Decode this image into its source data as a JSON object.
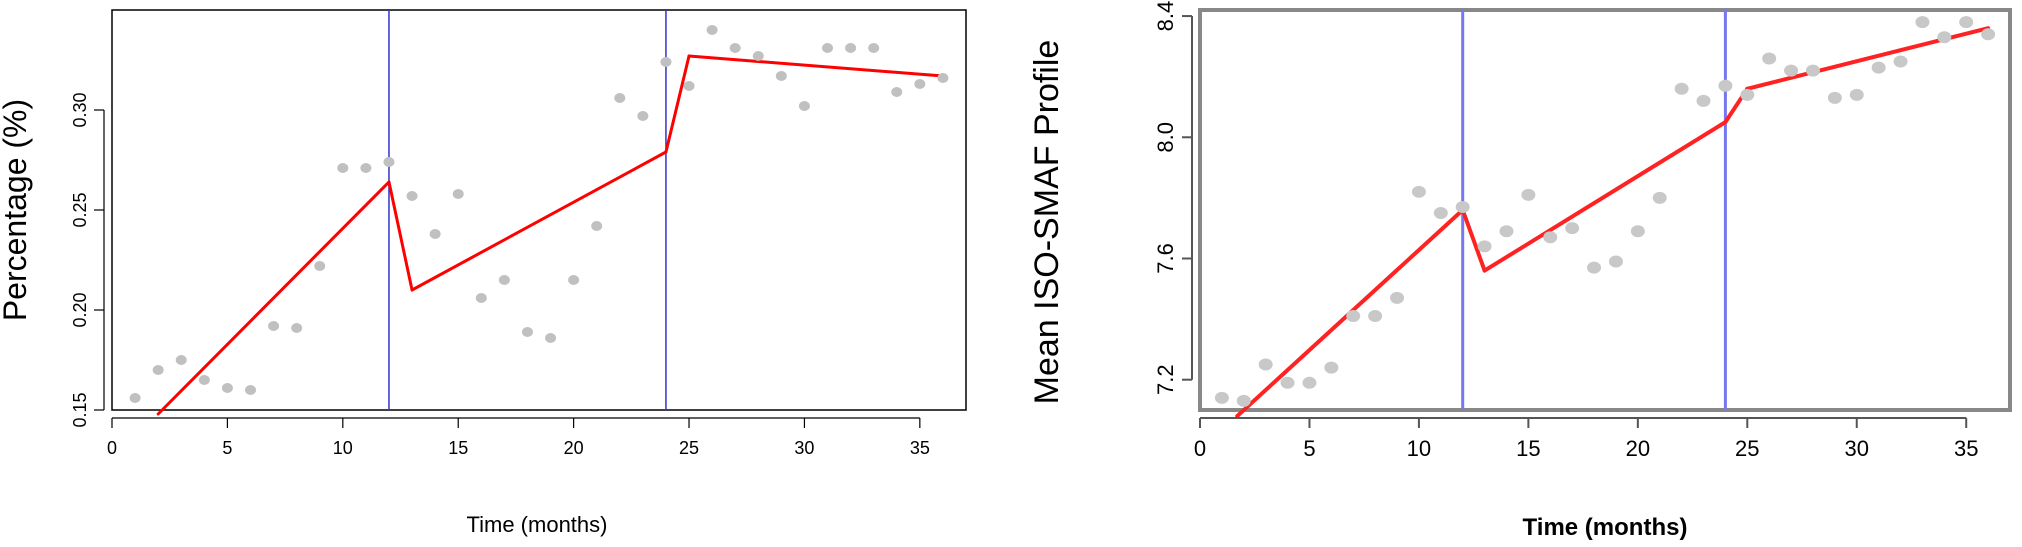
{
  "chart_data": [
    {
      "type": "scatter",
      "title": "",
      "xlabel": "Time (months)",
      "ylabel": "Percentage (%)",
      "xlim": [
        0,
        37
      ],
      "ylim": [
        0.15,
        0.35
      ],
      "xticks": [
        0,
        5,
        10,
        15,
        20,
        25,
        30,
        35
      ],
      "yticks": [
        0.15,
        0.2,
        0.25,
        0.3
      ],
      "ytick_labels": [
        "0.15",
        "0.20",
        "0.25",
        "0.30"
      ],
      "grid": false,
      "colors": {
        "points": "#c0c0c0",
        "fit": "#ff0000",
        "breaks": "#3333cc"
      },
      "series": [
        {
          "kind": "points",
          "x": [
            1,
            2,
            3,
            4,
            5,
            6,
            7,
            8,
            9,
            10,
            11,
            12,
            13,
            14,
            15,
            16,
            17,
            18,
            19,
            20,
            21,
            22,
            23,
            24,
            25,
            26,
            27,
            28,
            29,
            30,
            31,
            32,
            33,
            34,
            35,
            36
          ],
          "y": [
            0.156,
            0.17,
            0.175,
            0.165,
            0.161,
            0.16,
            0.192,
            0.191,
            0.222,
            0.271,
            0.271,
            0.274,
            0.257,
            0.238,
            0.258,
            0.206,
            0.215,
            0.189,
            0.186,
            0.215,
            0.242,
            0.306,
            0.297,
            0.324,
            0.312,
            0.34,
            0.331,
            0.327,
            0.317,
            0.302,
            0.331,
            0.331,
            0.331,
            0.309,
            0.313,
            0.316
          ]
        },
        {
          "kind": "fit",
          "x": [
            2,
            12,
            13,
            24,
            25,
            36
          ],
          "y": [
            0.148,
            0.264,
            0.21,
            0.279,
            0.327,
            0.317
          ]
        }
      ],
      "vlines": [
        12,
        24
      ],
      "ytick_rotation": -90
    },
    {
      "type": "scatter",
      "title": "",
      "xlabel": "Time (months)",
      "ylabel": "Mean ISO-SMAF Profile",
      "xlim": [
        0,
        37
      ],
      "ylim": [
        7.1,
        8.42
      ],
      "xticks": [
        0,
        5,
        10,
        15,
        20,
        25,
        30,
        35
      ],
      "yticks": [
        7.2,
        7.6,
        8.0,
        8.4
      ],
      "ytick_labels": [
        "7.2",
        "7.6",
        "8.0",
        "8.4"
      ],
      "grid": false,
      "colors": {
        "points": "#c8c8c8",
        "fit": "#ff2222",
        "breaks": "#7777ee"
      },
      "series": [
        {
          "kind": "points",
          "x": [
            1,
            2,
            3,
            4,
            5,
            6,
            7,
            8,
            9,
            10,
            11,
            12,
            13,
            14,
            15,
            16,
            17,
            18,
            19,
            20,
            21,
            22,
            23,
            24,
            25,
            26,
            27,
            28,
            29,
            30,
            31,
            32,
            33,
            34,
            35,
            36
          ],
          "y": [
            7.14,
            7.13,
            7.25,
            7.19,
            7.19,
            7.24,
            7.41,
            7.41,
            7.47,
            7.82,
            7.75,
            7.77,
            7.64,
            7.69,
            7.81,
            7.67,
            7.7,
            7.57,
            7.59,
            7.69,
            7.8,
            8.16,
            8.12,
            8.17,
            8.14,
            8.26,
            8.22,
            8.22,
            8.13,
            8.14,
            8.23,
            8.25,
            8.38,
            8.33,
            8.38,
            8.34
          ]
        },
        {
          "kind": "fit",
          "x": [
            1.7,
            12,
            13,
            24,
            25,
            36
          ],
          "y": [
            7.08,
            7.76,
            7.56,
            8.05,
            8.16,
            8.36
          ]
        }
      ],
      "vlines": [
        12,
        24
      ],
      "ytick_rotation": -90
    }
  ]
}
